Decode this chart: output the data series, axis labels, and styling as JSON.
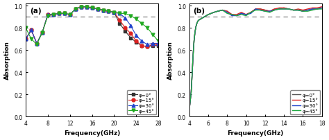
{
  "panel_a": {
    "label": "(a)",
    "xlim": [
      4,
      28
    ],
    "ylim": [
      0,
      1.02
    ],
    "xticks": [
      4,
      8,
      12,
      16,
      20,
      24,
      28
    ],
    "yticks": [
      0,
      0.2,
      0.4,
      0.6,
      0.8,
      1.0
    ],
    "xlabel": "Frequency(GHz)",
    "ylabel": "Absorption",
    "dashed_line_y": 0.9,
    "series": [
      {
        "label": "φ=0°",
        "color": "#333333",
        "marker": "s",
        "markersize": 3.5,
        "x": [
          4,
          5,
          6,
          7,
          8,
          9,
          10,
          11,
          12,
          13,
          14,
          15,
          16,
          17,
          18,
          19,
          20,
          21,
          22,
          23,
          24,
          25,
          26,
          27,
          28
        ],
        "y": [
          0.7,
          0.78,
          0.66,
          0.76,
          0.92,
          0.92,
          0.93,
          0.93,
          0.92,
          0.97,
          0.99,
          0.99,
          0.98,
          0.97,
          0.96,
          0.95,
          0.94,
          0.84,
          0.77,
          0.71,
          0.67,
          0.64,
          0.63,
          0.64,
          0.64
        ]
      },
      {
        "label": "φ=15°",
        "color": "#dd2222",
        "marker": "o",
        "markersize": 3.5,
        "x": [
          4,
          5,
          6,
          7,
          8,
          9,
          10,
          11,
          12,
          13,
          14,
          15,
          16,
          17,
          18,
          19,
          20,
          21,
          22,
          23,
          24,
          25,
          26,
          27,
          28
        ],
        "y": [
          0.7,
          0.78,
          0.66,
          0.76,
          0.92,
          0.92,
          0.93,
          0.93,
          0.92,
          0.97,
          0.99,
          0.99,
          0.98,
          0.97,
          0.96,
          0.95,
          0.94,
          0.87,
          0.8,
          0.75,
          0.68,
          0.64,
          0.63,
          0.65,
          0.65
        ]
      },
      {
        "label": "φ=30°",
        "color": "#2244cc",
        "marker": "^",
        "markersize": 3.5,
        "x": [
          4,
          5,
          6,
          7,
          8,
          9,
          10,
          11,
          12,
          13,
          14,
          15,
          16,
          17,
          18,
          19,
          20,
          21,
          22,
          23,
          24,
          25,
          26,
          27,
          28
        ],
        "y": [
          0.7,
          0.78,
          0.66,
          0.76,
          0.92,
          0.92,
          0.93,
          0.93,
          0.92,
          0.97,
          0.99,
          0.99,
          0.98,
          0.97,
          0.96,
          0.95,
          0.94,
          0.93,
          0.89,
          0.82,
          0.73,
          0.68,
          0.65,
          0.66,
          0.66
        ]
      },
      {
        "label": "φ=45°",
        "color": "#22aa22",
        "marker": "v",
        "markersize": 3.5,
        "x": [
          4,
          5,
          6,
          7,
          8,
          9,
          10,
          11,
          12,
          13,
          14,
          15,
          16,
          17,
          18,
          19,
          20,
          21,
          22,
          23,
          24,
          25,
          26,
          27,
          28
        ],
        "y": [
          0.8,
          0.7,
          0.65,
          0.76,
          0.91,
          0.92,
          0.93,
          0.93,
          0.92,
          0.97,
          0.99,
          0.99,
          0.98,
          0.97,
          0.96,
          0.95,
          0.94,
          0.93,
          0.93,
          0.91,
          0.88,
          0.84,
          0.8,
          0.74,
          0.68
        ]
      }
    ]
  },
  "panel_b": {
    "label": "(b)",
    "xlim": [
      4,
      18
    ],
    "ylim": [
      0,
      1.02
    ],
    "xticks": [
      4,
      6,
      8,
      10,
      12,
      14,
      16,
      18
    ],
    "yticks": [
      0,
      0.2,
      0.4,
      0.6,
      0.8,
      1.0
    ],
    "xlabel": "Frequency(GHz)",
    "ylabel": "Absorption",
    "dashed_line_y": 0.9,
    "series": [
      {
        "label": "φ=0°",
        "color": "#555555",
        "linewidth": 1.0,
        "x": [
          4.0,
          4.05,
          4.1,
          4.2,
          4.3,
          4.4,
          4.5,
          4.6,
          4.7,
          4.8,
          4.9,
          5.0,
          5.2,
          5.4,
          5.6,
          5.8,
          6.0,
          6.3,
          6.6,
          7.0,
          7.5,
          8.0,
          8.5,
          9.0,
          9.5,
          10.0,
          10.5,
          11.0,
          11.5,
          12.0,
          12.5,
          13.0,
          13.5,
          14.0,
          14.5,
          15.0,
          15.5,
          16.0,
          16.5,
          17.0,
          17.5,
          18.0
        ],
        "y": [
          0.08,
          0.1,
          0.14,
          0.22,
          0.38,
          0.55,
          0.68,
          0.76,
          0.81,
          0.84,
          0.86,
          0.87,
          0.88,
          0.89,
          0.9,
          0.91,
          0.92,
          0.93,
          0.94,
          0.95,
          0.96,
          0.95,
          0.92,
          0.91,
          0.93,
          0.92,
          0.94,
          0.97,
          0.97,
          0.96,
          0.95,
          0.97,
          0.97,
          0.98,
          0.97,
          0.96,
          0.96,
          0.95,
          0.96,
          0.97,
          0.97,
          0.98
        ]
      },
      {
        "label": "φ=15°",
        "color": "#dd2222",
        "linewidth": 1.0,
        "x": [
          4.0,
          4.05,
          4.1,
          4.2,
          4.3,
          4.4,
          4.5,
          4.6,
          4.7,
          4.8,
          4.9,
          5.0,
          5.2,
          5.4,
          5.6,
          5.8,
          6.0,
          6.3,
          6.6,
          7.0,
          7.5,
          8.0,
          8.5,
          9.0,
          9.5,
          10.0,
          10.5,
          11.0,
          11.5,
          12.0,
          12.5,
          13.0,
          13.5,
          14.0,
          14.5,
          15.0,
          15.5,
          16.0,
          16.5,
          17.0,
          17.5,
          18.0
        ],
        "y": [
          0.08,
          0.1,
          0.14,
          0.22,
          0.38,
          0.55,
          0.68,
          0.76,
          0.81,
          0.84,
          0.86,
          0.87,
          0.88,
          0.89,
          0.9,
          0.91,
          0.92,
          0.93,
          0.94,
          0.95,
          0.96,
          0.95,
          0.92,
          0.92,
          0.94,
          0.92,
          0.94,
          0.97,
          0.97,
          0.96,
          0.95,
          0.97,
          0.98,
          0.98,
          0.97,
          0.96,
          0.97,
          0.96,
          0.97,
          0.98,
          0.98,
          0.99
        ]
      },
      {
        "label": "φ=30°",
        "color": "#2244cc",
        "linewidth": 1.0,
        "x": [
          4.0,
          4.05,
          4.1,
          4.2,
          4.3,
          4.4,
          4.5,
          4.6,
          4.7,
          4.8,
          4.9,
          5.0,
          5.2,
          5.4,
          5.6,
          5.8,
          6.0,
          6.3,
          6.6,
          7.0,
          7.5,
          8.0,
          8.5,
          9.0,
          9.5,
          10.0,
          10.5,
          11.0,
          11.5,
          12.0,
          12.5,
          13.0,
          13.5,
          14.0,
          14.5,
          15.0,
          15.5,
          16.0,
          16.5,
          17.0,
          17.5,
          18.0
        ],
        "y": [
          0.08,
          0.1,
          0.14,
          0.22,
          0.38,
          0.55,
          0.68,
          0.76,
          0.81,
          0.84,
          0.86,
          0.87,
          0.88,
          0.89,
          0.9,
          0.91,
          0.92,
          0.93,
          0.94,
          0.95,
          0.96,
          0.94,
          0.91,
          0.91,
          0.93,
          0.92,
          0.93,
          0.97,
          0.96,
          0.95,
          0.95,
          0.96,
          0.97,
          0.97,
          0.97,
          0.96,
          0.96,
          0.95,
          0.96,
          0.97,
          0.97,
          0.98
        ]
      },
      {
        "label": "φ=45°",
        "color": "#22aa44",
        "linewidth": 1.0,
        "x": [
          4.0,
          4.05,
          4.1,
          4.2,
          4.3,
          4.4,
          4.5,
          4.6,
          4.7,
          4.8,
          4.9,
          5.0,
          5.2,
          5.4,
          5.6,
          5.8,
          6.0,
          6.3,
          6.6,
          7.0,
          7.5,
          8.0,
          8.5,
          9.0,
          9.5,
          10.0,
          10.5,
          11.0,
          11.5,
          12.0,
          12.5,
          13.0,
          13.5,
          14.0,
          14.5,
          15.0,
          15.5,
          16.0,
          16.5,
          17.0,
          17.5,
          18.0
        ],
        "y": [
          0.08,
          0.1,
          0.14,
          0.22,
          0.38,
          0.55,
          0.68,
          0.76,
          0.81,
          0.84,
          0.86,
          0.87,
          0.88,
          0.89,
          0.9,
          0.91,
          0.92,
          0.93,
          0.94,
          0.95,
          0.96,
          0.93,
          0.92,
          0.91,
          0.92,
          0.91,
          0.94,
          0.96,
          0.96,
          0.95,
          0.94,
          0.96,
          0.97,
          0.97,
          0.97,
          0.96,
          0.96,
          0.95,
          0.95,
          0.96,
          0.97,
          0.97
        ]
      }
    ]
  }
}
